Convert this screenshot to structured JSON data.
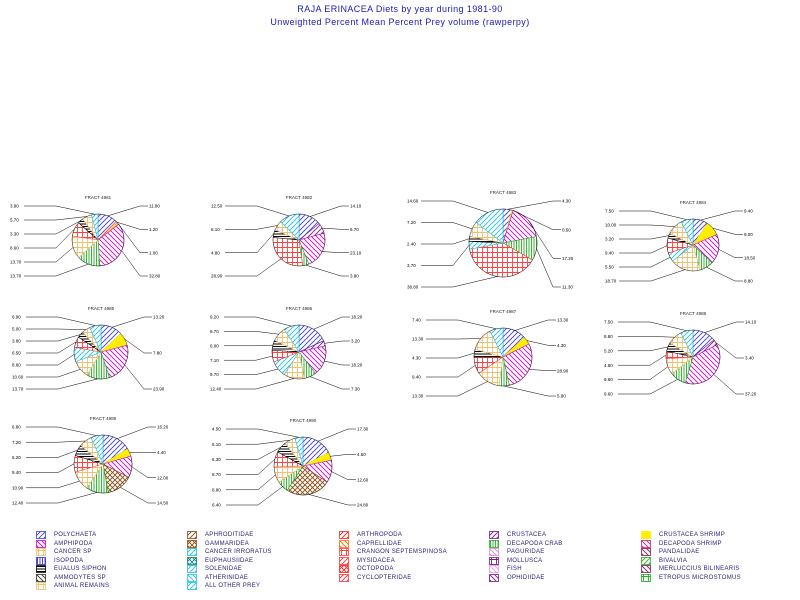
{
  "title": "RAJA ERINACEA Diets by year during 1981-90",
  "subtitle": "Unweighted Percent Mean Percent Prey  volume (rawperpy)",
  "categories": [
    {
      "label": "POLYCHAETA",
      "color": "#4040d0",
      "pattern": "lines"
    },
    {
      "label": "APHRODITIDAE",
      "color": "#8a4a10",
      "pattern": "lines"
    },
    {
      "label": "ARTHROPODA",
      "color": "#ff2020",
      "pattern": "lines"
    },
    {
      "label": "CRUSTACEA",
      "color": "#7a1a8a",
      "pattern": "lines"
    },
    {
      "label": "CRUSTACEA SHRIMP",
      "color": "#ffee00",
      "pattern": "solid"
    },
    {
      "label": "AMPHIPODA",
      "color": "#cc00cc",
      "pattern": "hatch"
    },
    {
      "label": "GAMMARIDEA",
      "color": "#8a4a10",
      "pattern": "cross"
    },
    {
      "label": "CAPRELLIDAE",
      "color": "#ff6a00",
      "pattern": "hatch"
    },
    {
      "label": "DECAPODA CRAB",
      "color": "#20b020",
      "pattern": "vlines"
    },
    {
      "label": "DECAPODA SHRIMP",
      "color": "#cc2080",
      "pattern": "hatch"
    },
    {
      "label": "CANCER SP",
      "color": "#f0c070",
      "pattern": "grid"
    },
    {
      "label": "CANCER IRRORATUS",
      "color": "#20c0e0",
      "pattern": "lines"
    },
    {
      "label": "CRANGON SEPTEMSPINOSA",
      "color": "#ff4040",
      "pattern": "grid"
    },
    {
      "label": "PAGURIDAE",
      "color": "#e08ae0",
      "pattern": "hatch"
    },
    {
      "label": "PANDALIDAE",
      "color": "#8a1a5a",
      "pattern": "hatch"
    },
    {
      "label": "ISOPODA",
      "color": "#3030c0",
      "pattern": "vlines"
    },
    {
      "label": "EUPHAUSIIDAE",
      "color": "#108070",
      "pattern": "cross"
    },
    {
      "label": "MYSIDACEA",
      "color": "#ff3030",
      "pattern": "lines"
    },
    {
      "label": "MOLLUSCA",
      "color": "#7a1a7a",
      "pattern": "grid"
    },
    {
      "label": "BIVALVIA",
      "color": "#20b020",
      "pattern": "lines"
    },
    {
      "label": "EUALUS SIPHON",
      "color": "#000000",
      "pattern": "hlines"
    },
    {
      "label": "SOLENIDAE",
      "color": "#20c0e0",
      "pattern": "lines"
    },
    {
      "label": "OCTOPODA",
      "color": "#ff2020",
      "pattern": "cross"
    },
    {
      "label": "FISH",
      "color": "#e0a0e0",
      "pattern": "hatch"
    },
    {
      "label": "MERLUCCIUS BILINEARIS",
      "color": "#8a1a5a",
      "pattern": "hatch"
    },
    {
      "label": "AMMODYTES SP",
      "color": "#303030",
      "pattern": "hatch"
    },
    {
      "label": "ATHERINIDAE",
      "color": "#20c0e0",
      "pattern": "hatch"
    },
    {
      "label": "CYCLOPTERIDAE",
      "color": "#ff3030",
      "pattern": "lines"
    },
    {
      "label": "OPHIDIIDAE",
      "color": "#7a1a7a",
      "pattern": "hatch"
    },
    {
      "label": "ETROPUS MICROSTOMUS",
      "color": "#20b020",
      "pattern": "grid"
    },
    {
      "label": "ANIMAL REMAINS",
      "color": "#f0c070",
      "pattern": "grid"
    },
    {
      "label": "ALL OTHER PREY",
      "color": "#20c0e0",
      "pattern": "lines"
    }
  ],
  "chart_data": [
    {
      "type": "pie",
      "title": "FRACT 4981",
      "slices": [
        {
          "category": "POLYCHAETA",
          "value": 11.8
        },
        {
          "category": "ARTHROPODA",
          "value": 1.2
        },
        {
          "category": "CRUSTACEA SHRIMP",
          "value": 1.0
        },
        {
          "category": "AMPHIPODA",
          "value": 32.8
        },
        {
          "category": "DECAPODA CRAB",
          "value": 13.7
        },
        {
          "category": "CANCER SP",
          "value": 13.7
        },
        {
          "category": "CRANGON SEPTEMSPINOSA",
          "value": 8.6
        },
        {
          "category": "EUALUS SIPHON",
          "value": 3.3
        },
        {
          "category": "ANIMAL REMAINS",
          "value": 5.7
        },
        {
          "category": "ALL OTHER PREY",
          "value": 3.9
        }
      ]
    },
    {
      "type": "pie",
      "title": "FRACT 4982",
      "slices": [
        {
          "category": "POLYCHAETA",
          "value": 14.1
        },
        {
          "category": "CRUSTACEA",
          "value": 6.7
        },
        {
          "category": "AMPHIPODA",
          "value": 23.1
        },
        {
          "category": "DECAPODA CRAB",
          "value": 3.8
        },
        {
          "category": "CRANGON SEPTEMSPINOSA",
          "value": 28.9
        },
        {
          "category": "EUALUS SIPHON",
          "value": 4.8
        },
        {
          "category": "ANIMAL REMAINS",
          "value": 6.1
        },
        {
          "category": "ALL OTHER PREY",
          "value": 12.5
        }
      ]
    },
    {
      "type": "pie",
      "title": "FRACT 4983",
      "slices": [
        {
          "category": "POLYCHAETA",
          "value": 4.3
        },
        {
          "category": "CRUSTACEA SHRIMP",
          "value": 0.5
        },
        {
          "category": "AMPHIPODA",
          "value": 17.2
        },
        {
          "category": "DECAPODA CRAB",
          "value": 11.3
        },
        {
          "category": "CRANGON SEPTEMSPINOSA",
          "value": 38.8
        },
        {
          "category": "CANCER IRRORATUS",
          "value": 3.7
        },
        {
          "category": "EUALUS SIPHON",
          "value": 2.4
        },
        {
          "category": "ANIMAL REMAINS",
          "value": 7.2
        },
        {
          "category": "ALL OTHER PREY",
          "value": 14.6
        }
      ]
    },
    {
      "type": "pie",
      "title": "FRACT 4984",
      "slices": [
        {
          "category": "POLYCHAETA",
          "value": 9.4
        },
        {
          "category": "CRUSTACEA SHRIMP",
          "value": 9.0
        },
        {
          "category": "AMPHIPODA",
          "value": 18.5
        },
        {
          "category": "DECAPODA CRAB",
          "value": 8.8
        },
        {
          "category": "CANCER SP",
          "value": 18.7
        },
        {
          "category": "CANCER IRRORATUS",
          "value": 5.5
        },
        {
          "category": "CRANGON SEPTEMSPINOSA",
          "value": 9.4
        },
        {
          "category": "EUALUS SIPHON",
          "value": 3.2
        },
        {
          "category": "ANIMAL REMAINS",
          "value": 10.0
        },
        {
          "category": "ALL OTHER PREY",
          "value": 7.5
        }
      ]
    },
    {
      "type": "pie",
      "title": "FRACT 4985",
      "slices": [
        {
          "category": "POLYCHAETA",
          "value": 13.2
        },
        {
          "category": "CRUSTACEA SHRIMP",
          "value": 7.8
        },
        {
          "category": "AMPHIPODA",
          "value": 23.9
        },
        {
          "category": "DECAPODA CRAB",
          "value": 13.7
        },
        {
          "category": "CANCER SP",
          "value": 10.6
        },
        {
          "category": "CANCER IRRORATUS",
          "value": 8.6
        },
        {
          "category": "CRANGON SEPTEMSPINOSA",
          "value": 6.5
        },
        {
          "category": "EUALUS SIPHON",
          "value": 3.8
        },
        {
          "category": "ANIMAL REMAINS",
          "value": 5.0
        },
        {
          "category": "ALL OTHER PREY",
          "value": 6.9
        }
      ]
    },
    {
      "type": "pie",
      "title": "FRACT 4986",
      "slices": [
        {
          "category": "POLYCHAETA",
          "value": 18.2
        },
        {
          "category": "CRUSTACEA",
          "value": 3.2
        },
        {
          "category": "AMPHIPODA",
          "value": 18.2
        },
        {
          "category": "DECAPODA CRAB",
          "value": 7.3
        },
        {
          "category": "CANCER SP",
          "value": 12.4
        },
        {
          "category": "CANCER IRRORATUS",
          "value": 9.7
        },
        {
          "category": "CRANGON SEPTEMSPINOSA",
          "value": 7.1
        },
        {
          "category": "EUALUS SIPHON",
          "value": 6.0
        },
        {
          "category": "ANIMAL REMAINS",
          "value": 8.7
        },
        {
          "category": "ALL OTHER PREY",
          "value": 9.2
        }
      ]
    },
    {
      "type": "pie",
      "title": "FRACT 4987",
      "slices": [
        {
          "category": "POLYCHAETA",
          "value": 13.3
        },
        {
          "category": "CRUSTACEA SHRIMP",
          "value": 4.3
        },
        {
          "category": "AMPHIPODA",
          "value": 28.9
        },
        {
          "category": "DECAPODA CRAB",
          "value": 5.8
        },
        {
          "category": "CANCER SP",
          "value": 13.3
        },
        {
          "category": "CRANGON SEPTEMSPINOSA",
          "value": 9.4
        },
        {
          "category": "EUALUS SIPHON",
          "value": 4.3
        },
        {
          "category": "ANIMAL REMAINS",
          "value": 13.3
        },
        {
          "category": "ALL OTHER PREY",
          "value": 7.4
        }
      ]
    },
    {
      "type": "pie",
      "title": "FRACT 4988",
      "slices": [
        {
          "category": "POLYCHAETA",
          "value": 14.1
        },
        {
          "category": "CRUSTACEA",
          "value": 3.4
        },
        {
          "category": "AMPHIPODA",
          "value": 37.2
        },
        {
          "category": "DECAPODA CRAB",
          "value": 9.6
        },
        {
          "category": "CANCER SP",
          "value": 9.6
        },
        {
          "category": "CRANGON SEPTEMSPINOSA",
          "value": 4.6
        },
        {
          "category": "EUALUS SIPHON",
          "value": 5.2
        },
        {
          "category": "ANIMAL REMAINS",
          "value": 8.8
        },
        {
          "category": "ALL OTHER PREY",
          "value": 7.5
        }
      ]
    },
    {
      "type": "pie",
      "title": "FRACT 4989",
      "slices": [
        {
          "category": "POLYCHAETA",
          "value": 16.2
        },
        {
          "category": "CRUSTACEA SHRIMP",
          "value": 4.4
        },
        {
          "category": "AMPHIPODA",
          "value": 12.0
        },
        {
          "category": "GAMMARIDEA",
          "value": 14.5
        },
        {
          "category": "DECAPODA CRAB",
          "value": 12.4
        },
        {
          "category": "CANCER SP",
          "value": 10.9
        },
        {
          "category": "CRANGON SEPTEMSPINOSA",
          "value": 9.4
        },
        {
          "category": "EUALUS SIPHON",
          "value": 6.2
        },
        {
          "category": "ANIMAL REMAINS",
          "value": 7.2
        },
        {
          "category": "ALL OTHER PREY",
          "value": 6.8
        }
      ]
    },
    {
      "type": "pie",
      "title": "FRACT 4990",
      "slices": [
        {
          "category": "POLYCHAETA",
          "value": 17.3
        },
        {
          "category": "CRUSTACEA SHRIMP",
          "value": 4.5
        },
        {
          "category": "AMPHIPODA",
          "value": 12.6
        },
        {
          "category": "GAMMARIDEA",
          "value": 24.8
        },
        {
          "category": "DECAPODA CRAB",
          "value": 6.4
        },
        {
          "category": "CANCER SP",
          "value": 8.8
        },
        {
          "category": "CRANGON SEPTEMSPINOSA",
          "value": 8.7
        },
        {
          "category": "EUALUS SIPHON",
          "value": 6.3
        },
        {
          "category": "ANIMAL REMAINS",
          "value": 6.1
        },
        {
          "category": "ALL OTHER PREY",
          "value": 4.5
        }
      ]
    }
  ]
}
